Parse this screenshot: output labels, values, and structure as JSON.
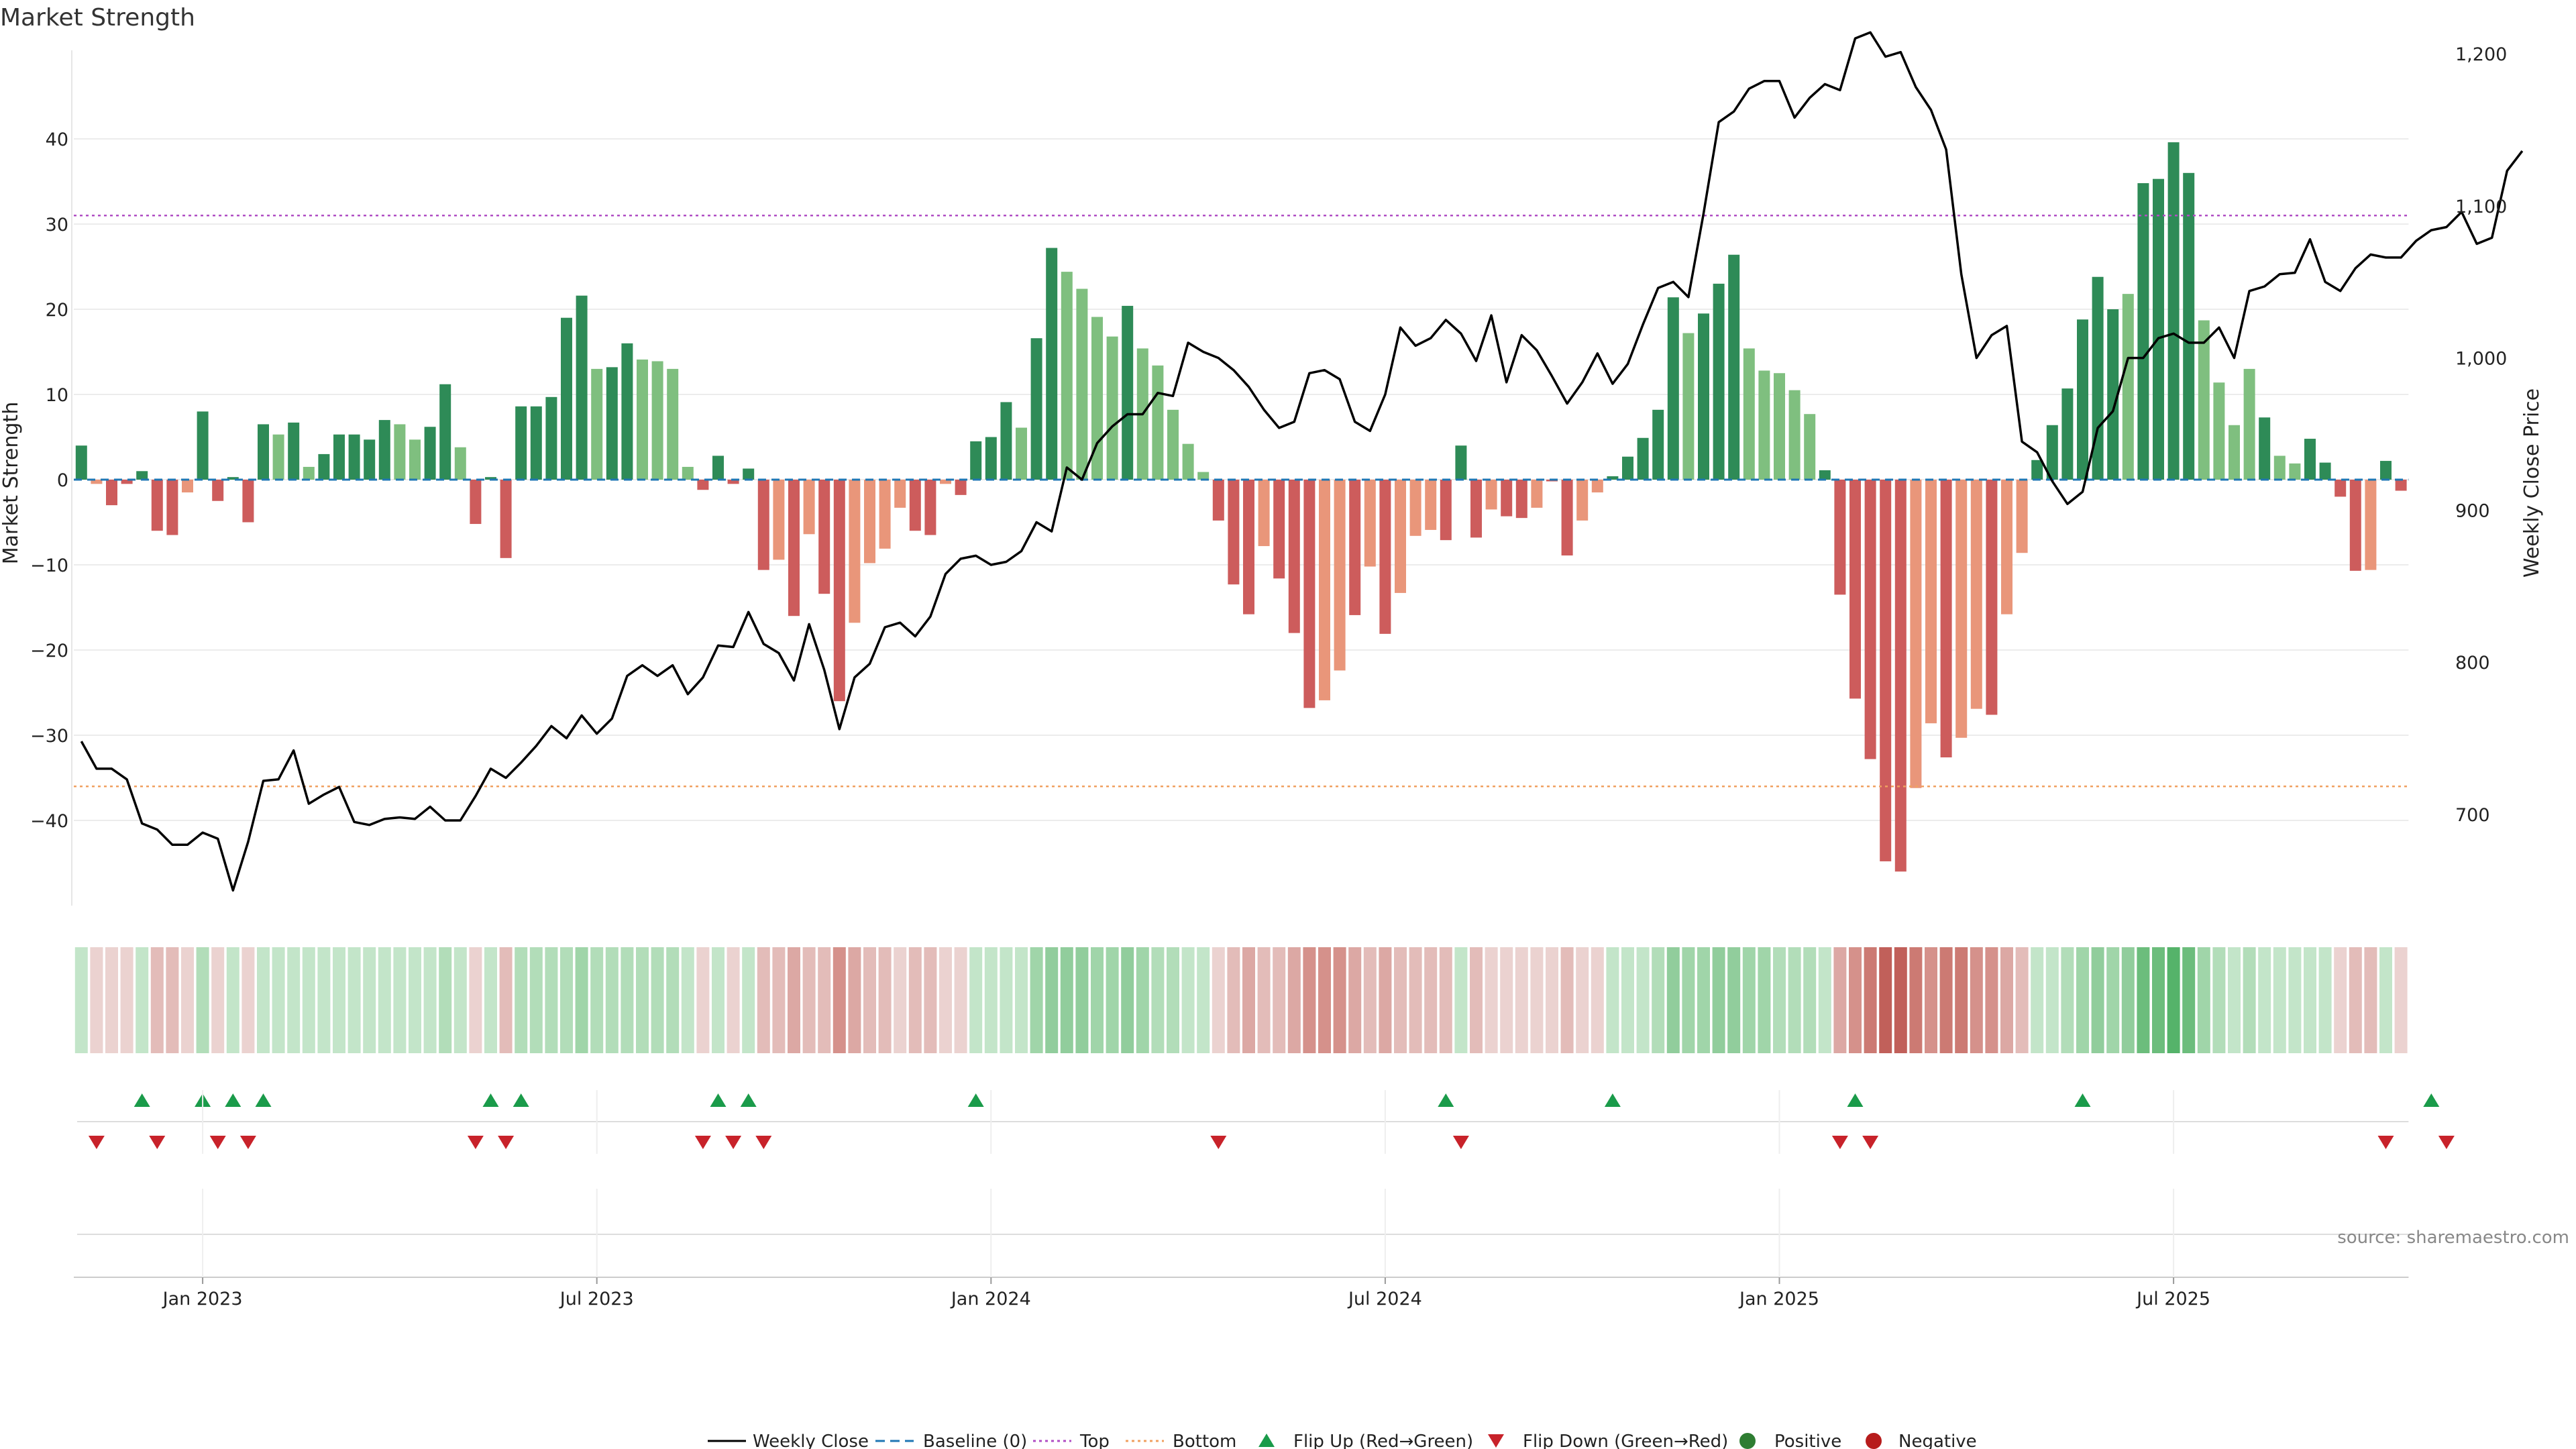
{
  "chart_data": {
    "type": "bar",
    "title": "Market Strength",
    "ylabel_left": "Market Strength",
    "ylabel_right": "Weekly Close Price",
    "left_ylim": [
      -50,
      50
    ],
    "right_ylim": [
      640,
      1200
    ],
    "left_ticks": [
      -40,
      -30,
      -20,
      -10,
      0,
      10,
      20,
      30,
      40
    ],
    "left_tick_labels": [
      "−40",
      "−30",
      "−20",
      "−10",
      "0",
      "10",
      "20",
      "30",
      "40"
    ],
    "right_ticks": [
      700,
      800,
      900,
      1000,
      1100,
      1200
    ],
    "right_tick_labels": [
      "700",
      "800",
      "900",
      "1,000",
      "1,100",
      "1,200"
    ],
    "x_tick_weeks": [
      8.5,
      34.5,
      60.5,
      86.5,
      112.5,
      138.5
    ],
    "x_tick_labels": [
      "Jan 2023",
      "Jul 2023",
      "Jan 2024",
      "Jul 2024",
      "Jan 2025",
      "Jul 2025"
    ],
    "top_line": 31,
    "bottom_line": -36,
    "strength": [
      4,
      -0.5,
      -3,
      -0.5,
      1,
      -6,
      -6.5,
      -1.5,
      8,
      -2.5,
      0.3,
      -5,
      6.5,
      5.3,
      6.7,
      1.5,
      3,
      5.3,
      5.3,
      4.7,
      7,
      6.5,
      4.7,
      6.2,
      11.2,
      3.8,
      -5.2,
      0.3,
      -9.2,
      8.6,
      8.6,
      9.7,
      19,
      21.6,
      13,
      13.2,
      16,
      14.1,
      13.9,
      13,
      1.5,
      -1.2,
      2.8,
      -0.5,
      1.3,
      -10.6,
      -9.4,
      -16,
      -6.4,
      -13.4,
      -26,
      -16.8,
      -9.8,
      -8.1,
      -3.3,
      -6,
      -6.5,
      -0.5,
      -1.8,
      4.5,
      5,
      9.1,
      6.1,
      16.6,
      27.2,
      24.4,
      22.4,
      19.1,
      16.8,
      20.4,
      15.4,
      13.4,
      8.2,
      4.2,
      0.9,
      -4.8,
      -12.3,
      -15.8,
      -7.8,
      -11.6,
      -18,
      -26.8,
      -25.9,
      -22.4,
      -15.9,
      -10.2,
      -18.1,
      -13.3,
      -6.6,
      -5.9,
      -7.1,
      4,
      -6.8,
      -3.5,
      -4.3,
      -4.5,
      -3.3,
      -0.2,
      -8.9,
      -4.8,
      -1.5,
      0.4,
      2.7,
      4.9,
      8.2,
      21.4,
      17.2,
      19.5,
      23,
      26.4,
      15.4,
      12.8,
      12.5,
      10.5,
      7.7,
      1.1,
      -13.5,
      -25.7,
      -32.8,
      -44.8,
      -46,
      -36.2,
      -28.6,
      -32.6,
      -30.3,
      -26.9,
      -27.6,
      -15.8,
      -8.6,
      2.3,
      6.4,
      10.7,
      18.8,
      23.8,
      20,
      21.8,
      34.8,
      35.3,
      39.6,
      36,
      18.7,
      11.4,
      6.4,
      13,
      7.3,
      2.8,
      1.9,
      4.8,
      2,
      -2,
      -10.7,
      -10.6,
      2.2,
      -1.3
    ],
    "bar_tone": [
      "d",
      "l",
      "d",
      "d",
      "d",
      "d",
      "d",
      "l",
      "d",
      "d",
      "d",
      "d",
      "d",
      "l",
      "d",
      "l",
      "d",
      "d",
      "d",
      "d",
      "d",
      "l",
      "l",
      "d",
      "d",
      "l",
      "d",
      "d",
      "d",
      "d",
      "d",
      "d",
      "d",
      "d",
      "l",
      "d",
      "d",
      "l",
      "l",
      "l",
      "l",
      "d",
      "d",
      "d",
      "d",
      "d",
      "l",
      "d",
      "l",
      "d",
      "d",
      "l",
      "l",
      "l",
      "l",
      "d",
      "d",
      "l",
      "d",
      "d",
      "d",
      "d",
      "l",
      "d",
      "d",
      "l",
      "l",
      "l",
      "l",
      "d",
      "l",
      "l",
      "l",
      "l",
      "l",
      "d",
      "d",
      "d",
      "l",
      "d",
      "d",
      "d",
      "l",
      "l",
      "d",
      "l",
      "d",
      "l",
      "l",
      "l",
      "d",
      "d",
      "d",
      "l",
      "d",
      "d",
      "l",
      "d",
      "d",
      "l",
      "l",
      "d",
      "d",
      "d",
      "d",
      "d",
      "l",
      "d",
      "d",
      "d",
      "l",
      "l",
      "l",
      "l",
      "l",
      "d",
      "d",
      "d",
      "d",
      "d",
      "d",
      "l",
      "l",
      "d",
      "l",
      "l",
      "d",
      "l",
      "l",
      "d",
      "d",
      "d",
      "d",
      "d",
      "d",
      "l",
      "d",
      "d",
      "d",
      "d",
      "l",
      "l",
      "l",
      "l",
      "d",
      "l",
      "l",
      "d",
      "d",
      "d",
      "d",
      "l",
      "d",
      "d"
    ],
    "price": [
      748,
      730,
      730,
      723,
      694,
      690,
      680,
      680,
      688,
      684,
      650,
      682,
      722,
      723,
      742,
      707,
      713,
      718,
      695,
      693,
      697,
      698,
      697,
      705,
      696,
      696,
      712,
      730,
      724,
      734,
      745,
      758,
      750,
      765,
      753,
      763,
      791,
      798,
      791,
      798,
      779,
      790,
      811,
      810,
      833,
      812,
      806,
      788,
      825,
      795,
      756,
      790,
      799,
      823,
      826,
      817,
      830,
      858,
      868,
      870,
      864,
      866,
      873,
      892,
      886,
      928,
      920,
      944,
      955,
      963,
      963,
      977,
      975,
      1010,
      1004,
      1000,
      992,
      981,
      966,
      954,
      958,
      990,
      992,
      986,
      958,
      952,
      976,
      1020,
      1008,
      1013,
      1025,
      1016,
      998,
      1028,
      984,
      1015,
      1005,
      988,
      970,
      984,
      1003,
      983,
      996,
      1022,
      1046,
      1050,
      1040,
      1095,
      1155,
      1162,
      1177,
      1182,
      1182,
      1158,
      1171,
      1180,
      1176,
      1210,
      1214,
      1198,
      1201,
      1178,
      1163,
      1137,
      1055,
      1000,
      1015,
      1021,
      945,
      938,
      919,
      904,
      912,
      954,
      965,
      1000,
      1000,
      1013,
      1016,
      1010,
      1010,
      1020,
      1000,
      1044,
      1047,
      1055,
      1056,
      1078,
      1050,
      1044,
      1059,
      1068,
      1066,
      1066,
      1077,
      1084,
      1086,
      1096,
      1075,
      1079,
      1123,
      1136
    ]
  },
  "heat_strip": {
    "colors": [
      "#c3e5c9",
      "#ebd2d0",
      "#ebd2d0",
      "#ebd2d0",
      "#c3e5c9",
      "#e3bcb9",
      "#e3bcb9",
      "#ebd2d0",
      "#b2ddb9",
      "#ebd2d0",
      "#c3e5c9",
      "#ebd2d0",
      "#c3e5c9",
      "#c3e5c9",
      "#c3e5c9",
      "#c3e5c9",
      "#c3e5c9",
      "#c3e5c9",
      "#c3e5c9",
      "#c3e5c9",
      "#c3e5c9",
      "#c3e5c9",
      "#c3e5c9",
      "#c3e5c9",
      "#b2ddb9",
      "#c3e5c9",
      "#ebd2d0",
      "#c3e5c9",
      "#e3bcb9",
      "#b2ddb9",
      "#b2ddb9",
      "#b2ddb9",
      "#b2ddb9",
      "#a0d5a9",
      "#b2ddb9",
      "#b2ddb9",
      "#b2ddb9",
      "#b2ddb9",
      "#b2ddb9",
      "#b2ddb9",
      "#c3e5c9",
      "#ebd2d0",
      "#c3e5c9",
      "#ebd2d0",
      "#c3e5c9",
      "#e3bcb9",
      "#e3bcb9",
      "#dca8a4",
      "#e3bcb9",
      "#e3bcb9",
      "#d5918b",
      "#dca8a4",
      "#e3bcb9",
      "#e3bcb9",
      "#ebd2d0",
      "#e3bcb9",
      "#e3bcb9",
      "#ebd2d0",
      "#ebd2d0",
      "#c3e5c9",
      "#c3e5c9",
      "#c3e5c9",
      "#c3e5c9",
      "#a0d5a9",
      "#91cd9c",
      "#91cd9c",
      "#91cd9c",
      "#a0d5a9",
      "#a0d5a9",
      "#91cd9c",
      "#a0d5a9",
      "#b2ddb9",
      "#b2ddb9",
      "#c3e5c9",
      "#c3e5c9",
      "#ebd2d0",
      "#e3bcb9",
      "#dca8a4",
      "#e3bcb9",
      "#e3bcb9",
      "#dca8a4",
      "#d5918b",
      "#d5918b",
      "#d5918b",
      "#dca8a4",
      "#e3bcb9",
      "#dca8a4",
      "#e3bcb9",
      "#e3bcb9",
      "#e3bcb9",
      "#e3bcb9",
      "#c3e5c9",
      "#e3bcb9",
      "#ebd2d0",
      "#ebd2d0",
      "#ebd2d0",
      "#ebd2d0",
      "#ebd2d0",
      "#e3bcb9",
      "#ebd2d0",
      "#ebd2d0",
      "#c3e5c9",
      "#c3e5c9",
      "#c3e5c9",
      "#b2ddb9",
      "#91cd9c",
      "#a0d5a9",
      "#a0d5a9",
      "#91cd9c",
      "#91cd9c",
      "#a0d5a9",
      "#a0d5a9",
      "#b2ddb9",
      "#b2ddb9",
      "#b2ddb9",
      "#c3e5c9",
      "#dca8a4",
      "#d5918b",
      "#cc7a73",
      "#c1605a",
      "#c1605a",
      "#cc7a73",
      "#d5918b",
      "#cc7a73",
      "#cc7a73",
      "#d5918b",
      "#d5918b",
      "#dca8a4",
      "#e3bcb9",
      "#c3e5c9",
      "#c3e5c9",
      "#b2ddb9",
      "#a0d5a9",
      "#91cd9c",
      "#a0d5a9",
      "#91cd9c",
      "#6cbd7c",
      "#6cbd7c",
      "#55b36a",
      "#6cbd7c",
      "#a0d5a9",
      "#b2ddb9",
      "#c3e5c9",
      "#b2ddb9",
      "#c3e5c9",
      "#c3e5c9",
      "#c3e5c9",
      "#c3e5c9",
      "#c3e5c9",
      "#ebd2d0",
      "#e3bcb9",
      "#e3bcb9",
      "#c3e5c9",
      "#ebd2d0"
    ]
  },
  "flip_up_weeks": [
    4,
    8,
    10,
    12,
    27,
    29,
    42,
    44,
    59,
    90,
    101,
    117,
    132,
    155
  ],
  "flip_down_weeks": [
    1,
    5,
    9,
    11,
    26,
    28,
    41,
    43,
    45,
    75,
    91,
    116,
    118,
    152,
    156
  ],
  "source": "source: sharemaestro.com",
  "legend": [
    {
      "key": "weekly-close",
      "label": "Weekly Close"
    },
    {
      "key": "baseline",
      "label": "Baseline (0)"
    },
    {
      "key": "top",
      "label": "Top"
    },
    {
      "key": "bottom",
      "label": "Bottom"
    },
    {
      "key": "flip-up",
      "label": "Flip Up (Red→Green)"
    },
    {
      "key": "flip-down",
      "label": "Flip Down (Green→Red)"
    },
    {
      "key": "positive",
      "label": "Positive"
    },
    {
      "key": "negative",
      "label": "Negative"
    }
  ],
  "colors": {
    "pos_dark": "#2e8b57",
    "pos_light": "#7fbf7f",
    "neg_dark": "#cd5c5c",
    "neg_light": "#e9967a",
    "line": "#000000",
    "baseline": "#1f77b4",
    "top": "#b04ec4",
    "bottom": "#f0a060",
    "flip_up": "#1a9b4a",
    "flip_down": "#c8222a",
    "positive_dot": "#2e7d32",
    "negative_dot": "#b71c1c"
  }
}
